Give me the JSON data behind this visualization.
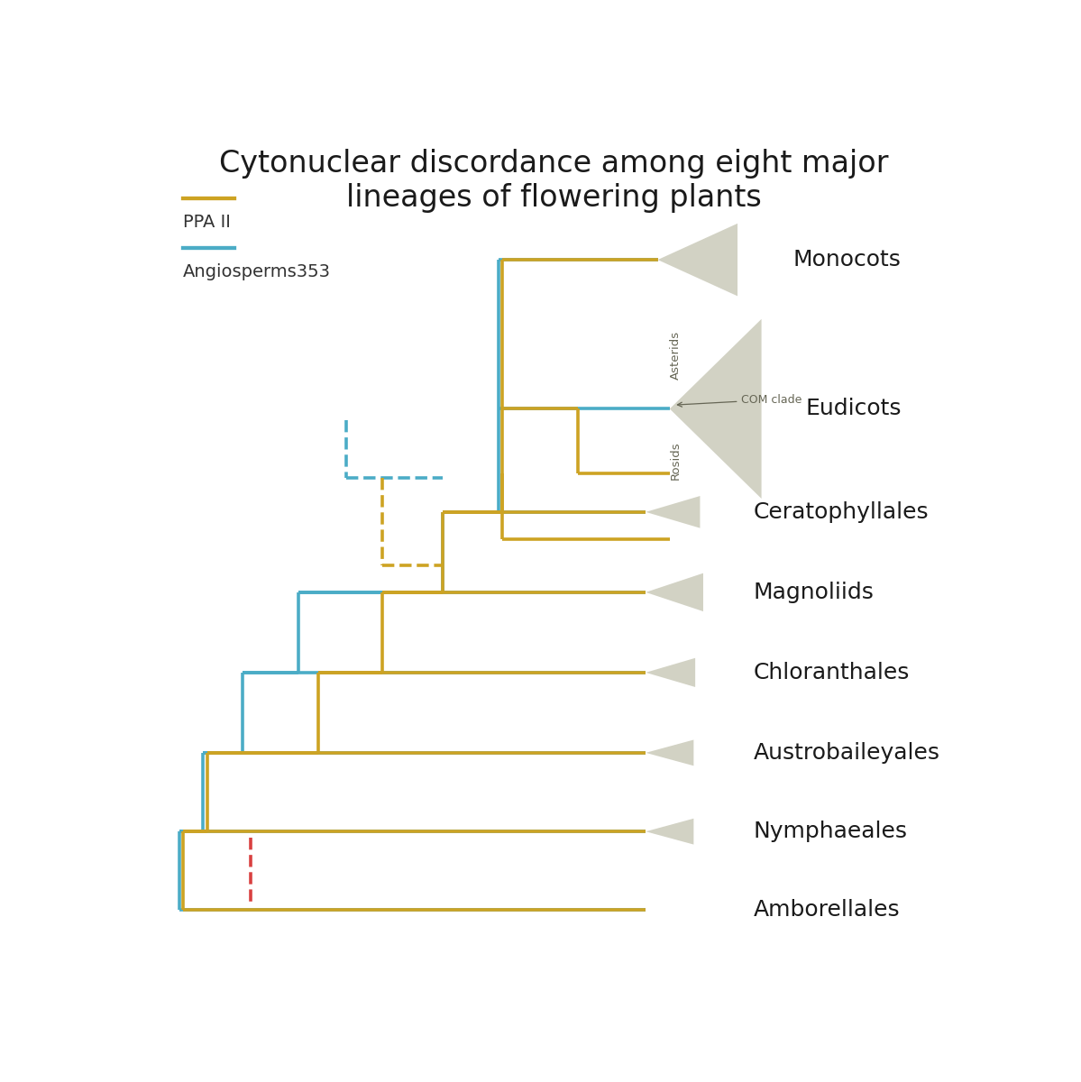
{
  "title": "Cytonuclear discordance among eight major\nlineages of flowering plants",
  "title_fontsize": 24,
  "gold_color": "#CDA323",
  "teal_color": "#4BACC6",
  "red_color": "#D94040",
  "bg_color": "#FFFFFF",
  "legend_ppa_label": "PPA II",
  "legend_ang_label": "Angiosperms353",
  "y_mon": 8.5,
  "y_eud": 6.55,
  "y_cer": 5.2,
  "y_mag": 4.15,
  "y_chl": 3.1,
  "y_aus": 2.05,
  "y_nym": 1.02,
  "y_amb": 0.0,
  "x_tip_mon": 6.55,
  "x_tip_eud": 6.7,
  "x_tip_small": 6.4,
  "xlim": [
    0,
    10.5
  ],
  "ylim": [
    -0.7,
    10.2
  ]
}
